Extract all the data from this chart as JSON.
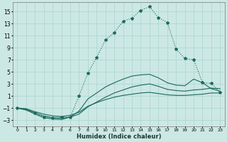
{
  "xlabel": "Humidex (Indice chaleur)",
  "bg_color": "#cce8e4",
  "grid_color": "#aad4cc",
  "line_color": "#1a6a5a",
  "xlim": [
    -0.5,
    23.5
  ],
  "ylim": [
    -4.0,
    16.5
  ],
  "xticks": [
    0,
    1,
    2,
    3,
    4,
    5,
    6,
    7,
    8,
    9,
    10,
    11,
    12,
    13,
    14,
    15,
    16,
    17,
    18,
    19,
    20,
    21,
    22,
    23
  ],
  "yticks": [
    -3,
    -1,
    1,
    3,
    5,
    7,
    9,
    11,
    13,
    15
  ],
  "curve_main_x": [
    0,
    2,
    3,
    4,
    5,
    6,
    7,
    8,
    9,
    10,
    11,
    12,
    13,
    14,
    15,
    16,
    17,
    18,
    19,
    20,
    21,
    22,
    23
  ],
  "curve_main_y": [
    -1,
    -1.8,
    -2.5,
    -2.6,
    -2.5,
    -2.5,
    1.0,
    4.8,
    7.4,
    10.3,
    11.5,
    13.4,
    13.9,
    15.2,
    15.8,
    14.0,
    13.2,
    8.8,
    7.2,
    7.0,
    3.2,
    3.1,
    1.6
  ],
  "curve2_x": [
    0,
    1,
    2,
    3,
    4,
    5,
    6,
    7,
    8,
    9,
    10,
    11,
    12,
    13,
    14,
    15,
    16,
    17,
    18,
    19,
    20,
    21,
    22,
    23
  ],
  "curve2_y": [
    -1,
    -1.3,
    -2.0,
    -2.6,
    -2.8,
    -2.9,
    -2.5,
    -1.5,
    0.5,
    1.5,
    2.5,
    3.2,
    3.8,
    4.3,
    4.5,
    4.6,
    4.0,
    3.2,
    2.8,
    2.7,
    3.8,
    3.2,
    2.2,
    1.8
  ],
  "curve3_x": [
    0,
    1,
    2,
    3,
    4,
    5,
    6,
    7,
    8,
    9,
    10,
    11,
    12,
    13,
    14,
    15,
    16,
    17,
    18,
    19,
    20,
    21,
    22,
    23
  ],
  "curve3_y": [
    -1,
    -1.2,
    -1.8,
    -2.3,
    -2.6,
    -2.7,
    -2.5,
    -2.0,
    -0.8,
    0.0,
    0.8,
    1.5,
    2.0,
    2.5,
    2.8,
    3.0,
    2.6,
    2.1,
    1.9,
    1.8,
    2.0,
    2.1,
    2.3,
    2.2
  ],
  "curve4_x": [
    0,
    1,
    2,
    3,
    4,
    5,
    6,
    7,
    8,
    9,
    10,
    11,
    12,
    13,
    14,
    15,
    16,
    17,
    18,
    19,
    20,
    21,
    22,
    23
  ],
  "curve4_y": [
    -1,
    -1.1,
    -1.6,
    -2.0,
    -2.3,
    -2.4,
    -2.2,
    -1.7,
    -0.7,
    -0.1,
    0.4,
    0.8,
    1.1,
    1.3,
    1.5,
    1.6,
    1.4,
    1.2,
    1.1,
    1.1,
    1.2,
    1.3,
    1.5,
    1.5
  ]
}
